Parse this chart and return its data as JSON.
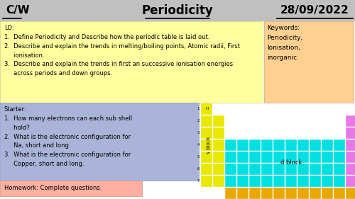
{
  "title_left": "C/W",
  "title_center": "Periodicity",
  "title_right": "28/09/2022",
  "header_bg": "#c0c0c0",
  "lo_bg": "#ffffa0",
  "lo_text": "LO:\n1.  Define Periodicity and Describe how the periodic table is laid out.\n2.  Describe and explain the trends in melting/boiling points, Atomic radii, First\n     ionisation.\n3.  Describe and explain the trends in first an successive ionisation energies\n     across periods and down groups.",
  "keywords_bg": "#ffd090",
  "keywords_text": "Keywords:\nPeriodicity,\nIonisation,\ninorganic.",
  "starter_bg": "#aab4d8",
  "starter_text": "Starter:\n1.  How many electrons can each sub shell\n     hold?\n2.  What is the electronic configuration for\n     Na, short and long.\n3.  What is the electronic configuration for\n     Copper, short and long.",
  "homework_bg": "#ffb0a0",
  "homework_text": "Homework: Complete questions.",
  "s_block_color": "#e8e800",
  "d_block_color": "#00e0e0",
  "p_block_color": "#e878e8",
  "f_block_color": "#e8a800",
  "bg_color": "#ffffff"
}
